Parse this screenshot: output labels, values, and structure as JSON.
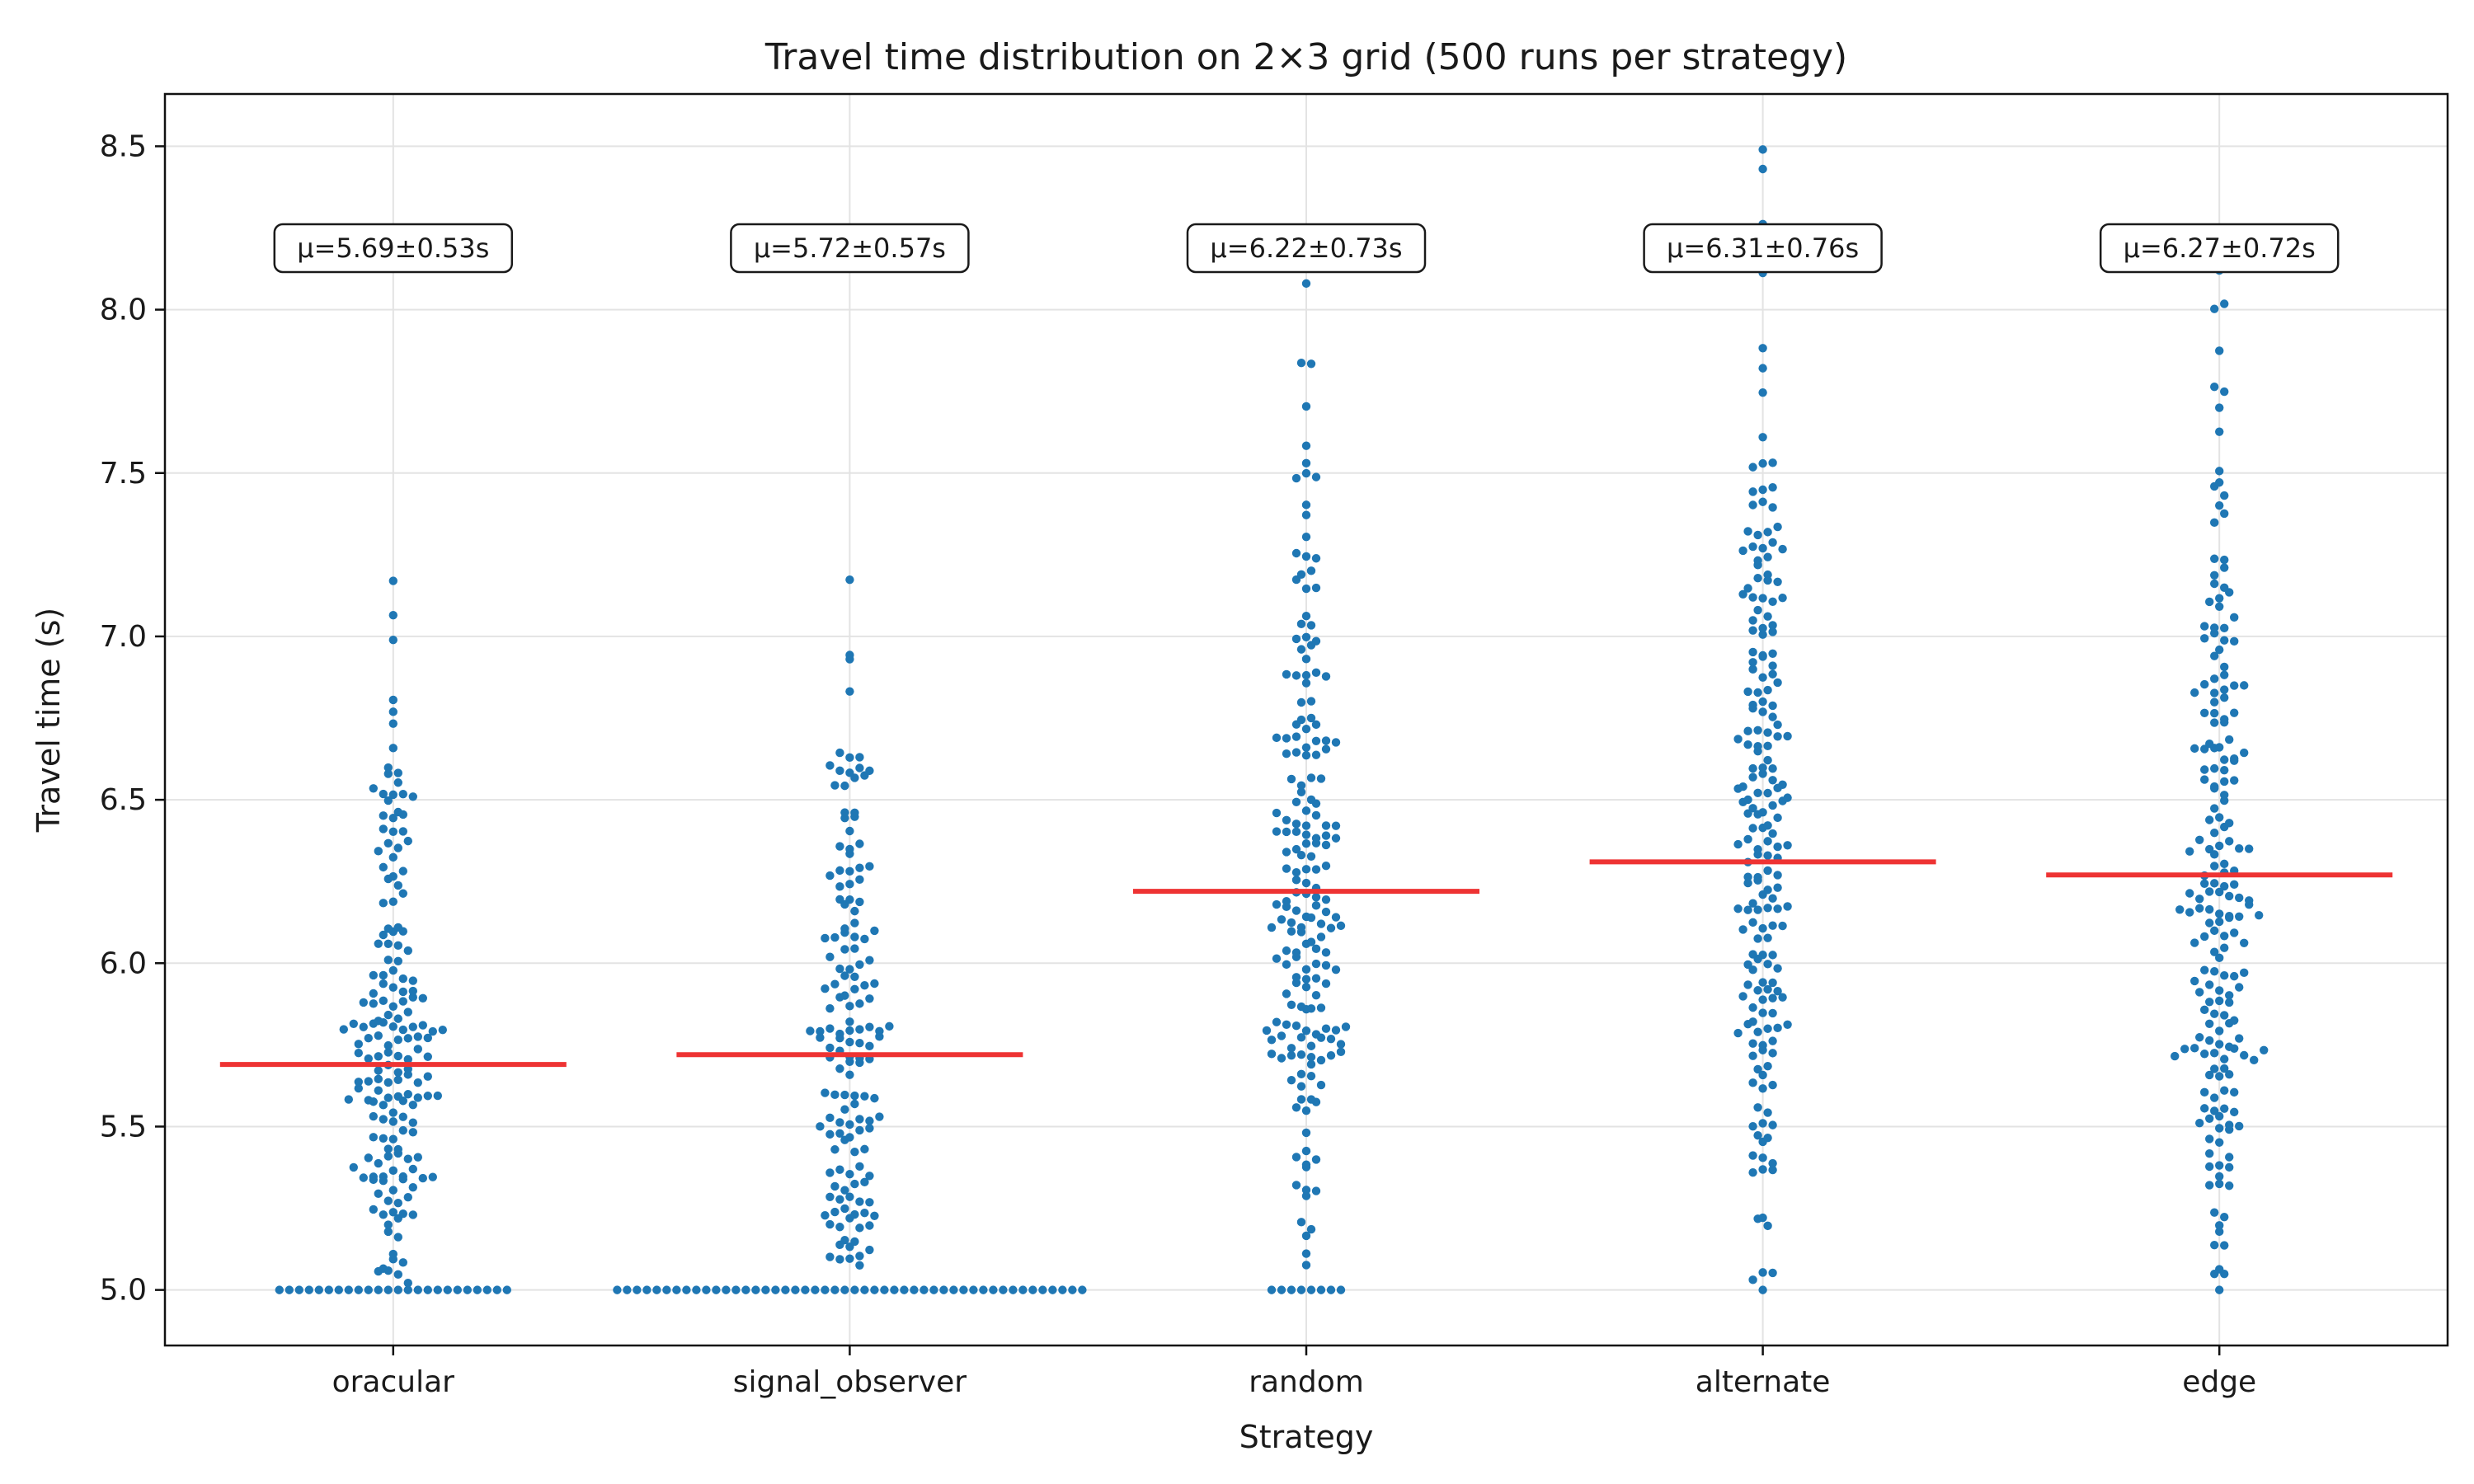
{
  "chart_data": {
    "type": "scatter",
    "subtype": "swarm",
    "title": "Travel time distribution on 2×3 grid (500 runs per strategy)",
    "xlabel": "Strategy",
    "ylabel": "Travel time (s)",
    "categories": [
      "oracular",
      "signal_observer",
      "random",
      "alternate",
      "edge"
    ],
    "ylim": [
      4.83,
      8.66
    ],
    "yticks": [
      5.0,
      5.5,
      6.0,
      6.5,
      7.0,
      7.5,
      8.0,
      8.5
    ],
    "ytick_labels": [
      "5.0",
      "5.5",
      "6.0",
      "6.5",
      "7.0",
      "7.5",
      "8.0",
      "8.5"
    ],
    "grid": true,
    "colors": {
      "points": "#1f77b4",
      "mean_line": "#ee3333"
    },
    "series": [
      {
        "category": "oracular",
        "mean": 5.69,
        "std": 0.53,
        "annotation": "μ=5.69±0.53s",
        "min": 5.0,
        "max": 7.17,
        "floor_count": 24
      },
      {
        "category": "signal_observer",
        "mean": 5.72,
        "std": 0.57,
        "annotation": "μ=5.72±0.57s",
        "min": 5.0,
        "max": 8.13,
        "floor_count": 48
      },
      {
        "category": "random",
        "mean": 6.22,
        "std": 0.73,
        "annotation": "μ=6.22±0.73s",
        "min": 5.0,
        "max": 8.08,
        "floor_count": 8
      },
      {
        "category": "alternate",
        "mean": 6.31,
        "std": 0.76,
        "annotation": "μ=6.31±0.76s",
        "min": 5.0,
        "max": 8.49,
        "floor_count": 1
      },
      {
        "category": "edge",
        "mean": 6.27,
        "std": 0.72,
        "annotation": "μ=6.27±0.72s",
        "min": 5.0,
        "max": 8.12,
        "floor_count": 1
      }
    ]
  }
}
